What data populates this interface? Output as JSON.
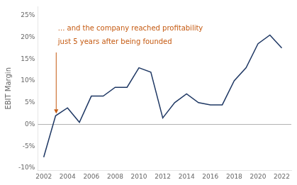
{
  "chart_data": {
    "type": "line",
    "x": [
      2002,
      2003,
      2004,
      2005,
      2006,
      2007,
      2008,
      2009,
      2010,
      2011,
      2012,
      2013,
      2014,
      2015,
      2016,
      2017,
      2018,
      2019,
      2020,
      2021,
      2022
    ],
    "values": [
      -7.5,
      2.0,
      3.8,
      0.5,
      6.5,
      6.5,
      8.5,
      8.5,
      13.0,
      12.0,
      1.5,
      5.0,
      7.0,
      5.0,
      4.5,
      4.5,
      10.0,
      13.0,
      18.5,
      20.5,
      17.5
    ],
    "color": "#1f3864",
    "y_label": "EBIT Margin",
    "xlim": [
      2001.5,
      2022.8
    ],
    "xticks": [
      2002,
      2004,
      2006,
      2008,
      2010,
      2012,
      2014,
      2016,
      2018,
      2020,
      2022
    ],
    "ylim": [
      -10.5,
      27
    ],
    "yticks": [
      {
        "value": -10,
        "label": "-10%"
      },
      {
        "value": -5,
        "label": "-5%"
      },
      {
        "value": 0,
        "label": "0%"
      },
      {
        "value": 5,
        "label": "5%"
      },
      {
        "value": 10,
        "label": "10%"
      },
      {
        "value": 15,
        "label": "15%"
      },
      {
        "value": 20,
        "label": "20%"
      },
      {
        "value": 25,
        "label": "25%"
      }
    ],
    "grid": false,
    "reference_lines": [
      {
        "y": 0,
        "color": "#b0b0b0"
      }
    ],
    "annotations": [
      {
        "text": "... and the company reached profitability",
        "x": 2003.2,
        "y": 21.5,
        "color": "#c55a11"
      },
      {
        "text": "just 5 years after being founded",
        "x": 2003.2,
        "y": 18.5,
        "color": "#c55a11"
      }
    ],
    "arrows": [
      {
        "x_start": 2003.05,
        "y_start": 16.5,
        "x_end": 2003.05,
        "y_end": 2.5,
        "color": "#c55a11"
      }
    ]
  }
}
